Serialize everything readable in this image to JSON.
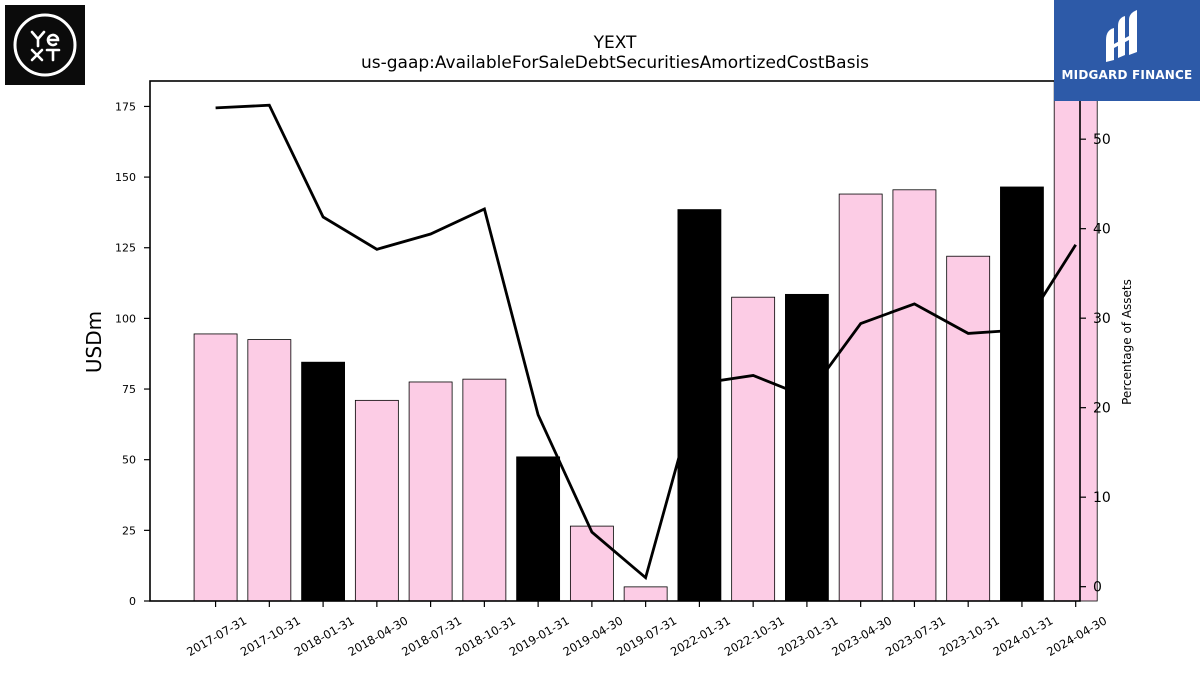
{
  "logos": {
    "left_text": "YEXT",
    "right_text": "MIDGARD FINANCE"
  },
  "colors": {
    "bar_pink": "#fccce5",
    "bar_black": "#000000",
    "line": "#000000",
    "logo_left_bg": "#0b0b0b",
    "logo_right_bg": "#2d5aa8"
  },
  "chart_data": {
    "type": "bar",
    "title": "YEXT",
    "subtitle": "us-gaap:AvailableForSaleDebtSecuritiesAmortizedCostBasis",
    "ylabel": "USDm",
    "y2label": "Percentage of Assets",
    "ylim": [
      0,
      184
    ],
    "y2lim": [
      -1.6,
      56.5
    ],
    "yticks": [
      0,
      25,
      50,
      75,
      100,
      125,
      150,
      175
    ],
    "y2ticks": [
      0,
      10,
      20,
      30,
      40,
      50
    ],
    "grid": false,
    "categories": [
      "2017-07-31",
      "2017-10-31",
      "2018-01-31",
      "2018-04-30",
      "2018-07-31",
      "2018-10-31",
      "2019-01-31",
      "2019-04-30",
      "2019-07-31",
      "2022-01-31",
      "2022-10-31",
      "2023-01-31",
      "2023-04-30",
      "2023-07-31",
      "2023-10-31",
      "2024-01-31",
      "2024-04-30"
    ],
    "series": [
      {
        "type": "bar",
        "axis": "left",
        "values": [
          94.5,
          92.5,
          84.5,
          71,
          77.5,
          78.5,
          51,
          26.5,
          5,
          138.5,
          107.5,
          108.5,
          144,
          145.5,
          122,
          146.5,
          185
        ]
      },
      {
        "type": "line",
        "axis": "right",
        "values": [
          53.5,
          53.8,
          41.3,
          37.7,
          39.4,
          42.2,
          19.2,
          6.1,
          1.0,
          22.7,
          23.6,
          21.2,
          29.4,
          31.6,
          28.3,
          28.7,
          38.2
        ]
      }
    ],
    "bar_colors": [
      "pink",
      "pink",
      "black",
      "pink",
      "pink",
      "pink",
      "black",
      "pink",
      "pink",
      "black",
      "pink",
      "black",
      "pink",
      "pink",
      "pink",
      "black",
      "pink"
    ]
  }
}
